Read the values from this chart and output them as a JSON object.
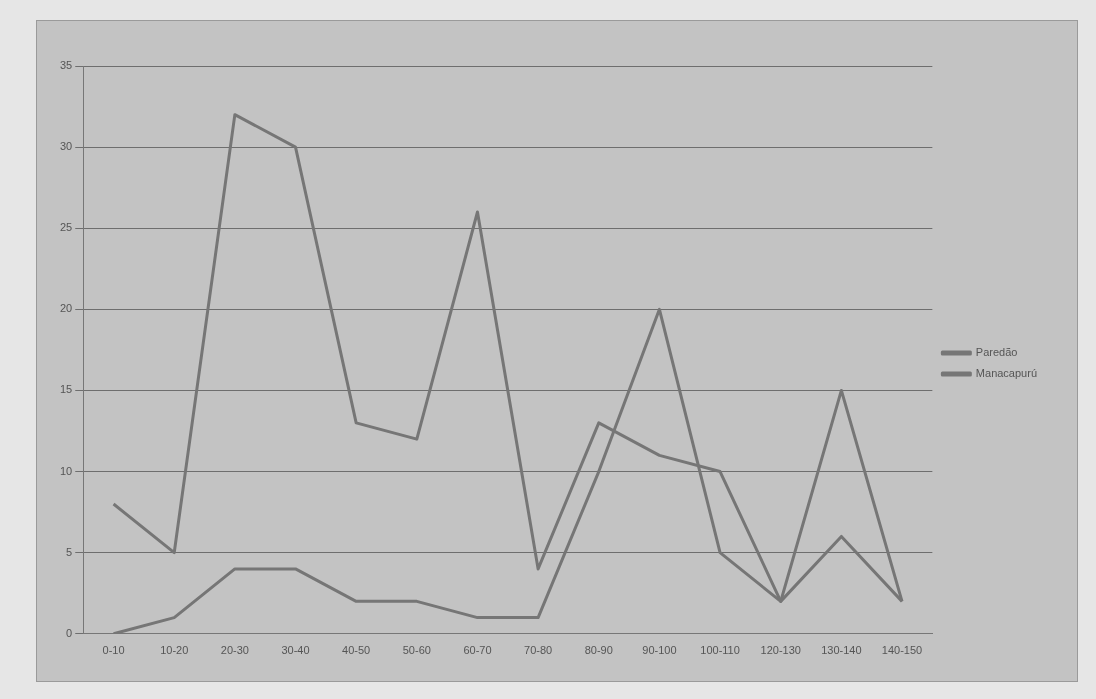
{
  "chart_data": {
    "type": "line",
    "categories": [
      "0-10",
      "10-20",
      "20-30",
      "30-40",
      "40-50",
      "50-60",
      "60-70",
      "70-80",
      "80-90",
      "90-100",
      "100-110",
      "120-130",
      "130-140",
      "140-150"
    ],
    "series": [
      {
        "name": "Paredão",
        "color": "#767676",
        "values": [
          8,
          5,
          32,
          30,
          13,
          12,
          26,
          4,
          13,
          11,
          10,
          2,
          6,
          2
        ]
      },
      {
        "name": "Manacapurú",
        "color": "#767676",
        "values": [
          0,
          1,
          4,
          4,
          2,
          2,
          1,
          1,
          10,
          20,
          5,
          2,
          15,
          2
        ]
      }
    ],
    "ylim": [
      0,
      35
    ],
    "yticks": [
      0,
      5,
      10,
      15,
      20,
      25,
      30,
      35
    ],
    "grid": "y",
    "legend": "right",
    "marker": "none",
    "line_style": "solid"
  }
}
